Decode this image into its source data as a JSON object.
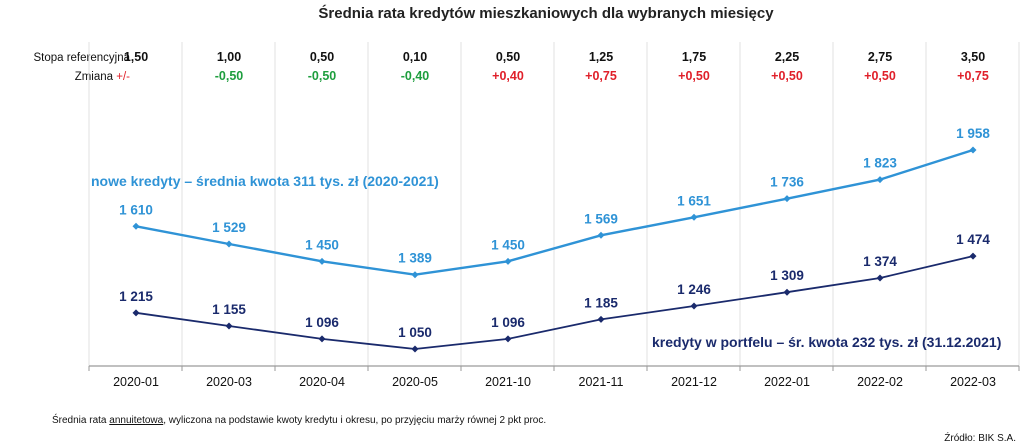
{
  "chart_data": {
    "type": "line",
    "title": "Średnia rata kredytów mieszkaniowych dla wybranych miesięcy",
    "categories": [
      "2020-01",
      "2020-03",
      "2020-04",
      "2020-05",
      "2021-10",
      "2021-11",
      "2021-12",
      "2022-01",
      "2022-02",
      "2022-03"
    ],
    "rate_row": {
      "label": "Stopa referencyjna",
      "values": [
        "1,50",
        "1,00",
        "0,50",
        "0,10",
        "0,50",
        "1,25",
        "1,75",
        "2,25",
        "2,75",
        "3,50"
      ]
    },
    "change_row": {
      "label_prefix": "Zmiana ",
      "label_sign": "+/-",
      "values": [
        "",
        "-0,50",
        "-0,50",
        "-0,40",
        "+0,40",
        "+0,75",
        "+0,50",
        "+0,50",
        "+0,50",
        "+0,75"
      ]
    },
    "series": [
      {
        "name": "nowe kredyty – średnia kwota 311 tys. zł (2020-2021)",
        "values": [
          1610,
          1529,
          1450,
          1389,
          1450,
          1569,
          1651,
          1736,
          1823,
          1958
        ],
        "labels": [
          "1 610",
          "1 529",
          "1 450",
          "1 389",
          "1 450",
          "1 569",
          "1 651",
          "1 736",
          "1 823",
          "1 958"
        ],
        "color": "#2f93d6"
      },
      {
        "name": "kredyty w portfelu – śr. kwota 232 tys. zł (31.12.2021)",
        "values": [
          1215,
          1155,
          1096,
          1050,
          1096,
          1185,
          1246,
          1309,
          1374,
          1474
        ],
        "labels": [
          "1 215",
          "1 155",
          "1 096",
          "1 050",
          "1 096",
          "1 185",
          "1 246",
          "1 309",
          "1 374",
          "1 474"
        ],
        "color": "#1a2a6c"
      }
    ],
    "ylim": [
      1000,
      2000
    ],
    "grid": "vertical",
    "colors": {
      "positive": "#e0202a",
      "negative": "#1e9e3e",
      "axis": "#9a9a9a",
      "grid": "#e2e2e2"
    }
  },
  "footnote": {
    "prefix": "Średnia rata ",
    "underlined": "annuitetowa",
    "suffix": ", wyliczona na podstawie kwoty kredytu i okresu, po przyjęciu marży równej 2 pkt proc."
  },
  "source": "Źródło: BIK S.A."
}
